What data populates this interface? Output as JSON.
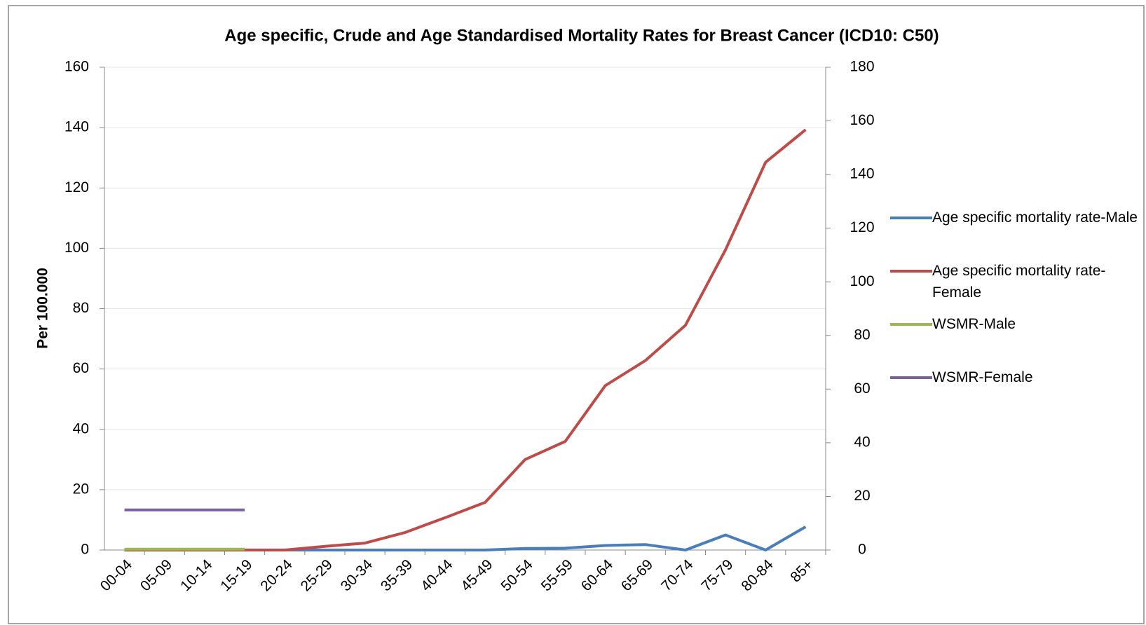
{
  "chart_data": {
    "type": "line",
    "title": "Age specific, Crude and Age Standardised Mortality Rates for Breast Cancer  (ICD10: C50)",
    "y_label": "Per 100.000",
    "categories": [
      "00-04",
      "05-09",
      "10-14",
      "15-19",
      "20-24",
      "25-29",
      "30-34",
      "35-39",
      "40-44",
      "45-49",
      "50-54",
      "55-59",
      "60-64",
      "65-69",
      "70-74",
      "75-79",
      "80-84",
      "85+"
    ],
    "series": [
      {
        "name": "Age specific mortality rate-Male",
        "color": "#4a7ebb",
        "values": [
          0,
          0,
          0,
          0,
          0,
          0,
          0,
          0,
          0,
          0,
          0.5,
          0.6,
          1.5,
          1.8,
          0,
          5.0,
          0,
          7.7
        ]
      },
      {
        "name": "Age specific mortality rate-Female",
        "color": "#be4b48",
        "values": [
          0,
          0,
          0,
          0,
          0,
          1.2,
          2.3,
          5.8,
          10.7,
          15.8,
          30,
          36,
          54.5,
          62.8,
          74.5,
          99.5,
          128.5,
          139.3
        ]
      },
      {
        "name": "WSMR-Male",
        "color": "#98b954",
        "values": [
          0.3,
          0.3,
          0.3,
          0.3,
          null,
          null,
          null,
          null,
          null,
          null,
          null,
          null,
          null,
          null,
          null,
          null,
          null,
          null
        ]
      },
      {
        "name": "WSMR-Female",
        "color": "#7d60a0",
        "values": [
          13.3,
          13.3,
          13.3,
          13.3,
          null,
          null,
          null,
          null,
          null,
          null,
          null,
          null,
          null,
          null,
          null,
          null,
          null,
          null
        ]
      }
    ],
    "ylim": [
      0,
      160
    ],
    "yticks": [
      0,
      20,
      40,
      60,
      80,
      100,
      120,
      140,
      160
    ],
    "y2lim": [
      0,
      180
    ],
    "y2ticks": [
      0,
      20,
      40,
      60,
      80,
      100,
      120,
      140,
      160,
      180
    ],
    "grid": true,
    "legend": "right"
  }
}
